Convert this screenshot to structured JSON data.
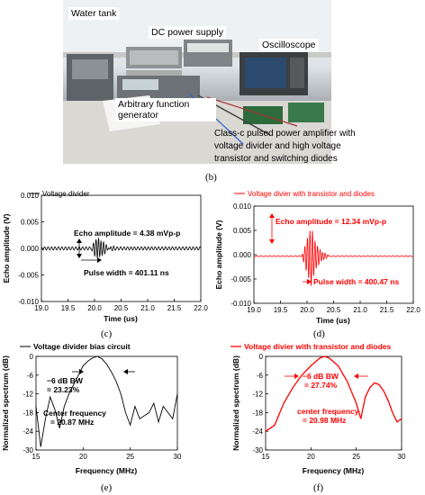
{
  "photo": {
    "labels": {
      "water_tank": "Water tank",
      "dc_power": "DC power supply",
      "oscilloscope": "Oscilloscope",
      "function_generator": "Arbitrary function\ngenerator"
    },
    "caption": "Class-c pulsed power amplifier with\nvoltage divider and high voltage\ntransistor and switching diodes",
    "panel_label": "(b)"
  },
  "colors": {
    "black_series": "#000000",
    "red_series": "#ff0000"
  },
  "chart_data": [
    {
      "id": "c",
      "type": "line",
      "panel_label": "(c)",
      "xlabel": "Time (us)",
      "ylabel": "Echo amplitude (V)",
      "xlim": [
        19.0,
        22.0
      ],
      "ylim": [
        -0.01,
        0.01
      ],
      "xticks": [
        "19.0",
        "19.5",
        "20.0",
        "20.5",
        "21.0",
        "21.5",
        "22.0"
      ],
      "yticks": [
        "0.010",
        "0.005",
        "0.000",
        "-0.005",
        "-0.010"
      ],
      "legend": "Voltage divider",
      "legend_position": "top-left",
      "series": [
        {
          "name": "Voltage divider",
          "color": "#000000",
          "waveform": {
            "baseline": 0.0,
            "noise_amplitude": 0.0003,
            "noise_period_us": 0.065,
            "burst_start_us": 19.92,
            "burst_peak_us": 20.08,
            "burst_end_us": 20.4,
            "burst_amplitude": 0.0022
          }
        }
      ],
      "annotations": {
        "amplitude": "Echo amplitude = 4.38 mVp-p",
        "pulse_width": "Pulse width = 401.11 ns"
      }
    },
    {
      "id": "d",
      "type": "line",
      "panel_label": "(d)",
      "xlabel": "Time (us)",
      "ylabel": "Echo amplitude (V)",
      "xlim": [
        19.0,
        22.0
      ],
      "ylim": [
        -0.01,
        0.01
      ],
      "xticks": [
        "19.0",
        "19.5",
        "20.0",
        "20.5",
        "21.0",
        "21.5",
        "22.0"
      ],
      "yticks": [
        "0.010",
        "0.005",
        "0.000",
        "-0.005",
        "-0.010"
      ],
      "legend": "Voltage divier with transistor and diodes",
      "legend_position": "top-left",
      "series": [
        {
          "name": "Voltage divier with transistor and diodes",
          "color": "#ff0000",
          "waveform": {
            "baseline": -0.0003,
            "noise_amplitude": 0.0001,
            "noise_period_us": 0.08,
            "burst_start_us": 19.9,
            "burst_peak_us": 20.08,
            "burst_end_us": 20.4,
            "burst_amplitude": 0.0062
          }
        }
      ],
      "annotations": {
        "amplitude": "Echo amplitude = 12.34 mVp-p",
        "pulse_width": "Pulse width = 400.47 ns"
      }
    },
    {
      "id": "e",
      "type": "line",
      "panel_label": "(e)",
      "xlabel": "Frequency (MHz)",
      "ylabel": "Normalized spectrum (dB)",
      "xlim": [
        15,
        30
      ],
      "ylim": [
        -30,
        0
      ],
      "xticks": [
        "15",
        "20",
        "25",
        "30"
      ],
      "yticks": [
        "0",
        "-6",
        "-12",
        "-18",
        "-24",
        "-30"
      ],
      "legend": "Voltage divider bias circuit",
      "legend_position": "top-left",
      "series": [
        {
          "name": "Voltage divider bias circuit",
          "color": "#000000",
          "x": [
            15.0,
            15.5,
            16.0,
            16.5,
            17.0,
            17.5,
            18.0,
            18.5,
            19.0,
            19.5,
            20.0,
            20.5,
            21.0,
            21.5,
            22.0,
            22.5,
            23.0,
            23.5,
            24.0,
            24.5,
            25.0,
            25.5,
            26.0,
            26.5,
            27.0,
            27.5,
            28.0,
            28.5,
            29.0,
            29.5,
            30.0
          ],
          "y": [
            -16,
            -29,
            -20,
            -13,
            -17,
            -23,
            -16,
            -12,
            -9,
            -6,
            -3,
            -1.5,
            -0.5,
            0,
            -0.8,
            -2.5,
            -5,
            -8,
            -12,
            -18,
            -22,
            -16,
            -20,
            -19,
            -18,
            -15,
            -21,
            -16,
            -18,
            -20,
            -12
          ]
        }
      ],
      "annotations": {
        "bandwidth": "-6 dB BW\n= 23.23%",
        "center_frequency": "Center frequency\n= 20.87 MHz"
      }
    },
    {
      "id": "f",
      "type": "line",
      "panel_label": "(f)",
      "xlabel": "Frequency (MHz)",
      "ylabel": "Normalized spectrum (dB)",
      "xlim": [
        15,
        30
      ],
      "ylim": [
        -30,
        0
      ],
      "xticks": [
        "15",
        "20",
        "25",
        "30"
      ],
      "yticks": [
        "0",
        "-6",
        "-12",
        "-18",
        "-24",
        "-30"
      ],
      "legend": "Voltage divier with transistor and diodes",
      "legend_position": "top-left",
      "series": [
        {
          "name": "Voltage divier with transistor and diodes",
          "color": "#ff0000",
          "x": [
            15.0,
            16.0,
            17.0,
            18.0,
            19.0,
            20.0,
            21.0,
            21.5,
            22.0,
            23.0,
            24.0,
            25.0,
            25.5,
            26.0,
            26.5,
            27.0,
            27.5,
            28.0,
            28.5,
            29.0,
            29.5,
            30.0
          ],
          "y": [
            -24,
            -22,
            -15,
            -10,
            -6,
            -3,
            -0.5,
            0,
            -0.5,
            -3,
            -8,
            -15,
            -20,
            -13,
            -10,
            -8.5,
            -9,
            -11,
            -14,
            -18,
            -21,
            -20
          ]
        }
      ],
      "annotations": {
        "bandwidth": "-6 dB BW\n= 27.74%",
        "center_frequency": "center frequency\n= 20.98 MHz"
      }
    }
  ]
}
